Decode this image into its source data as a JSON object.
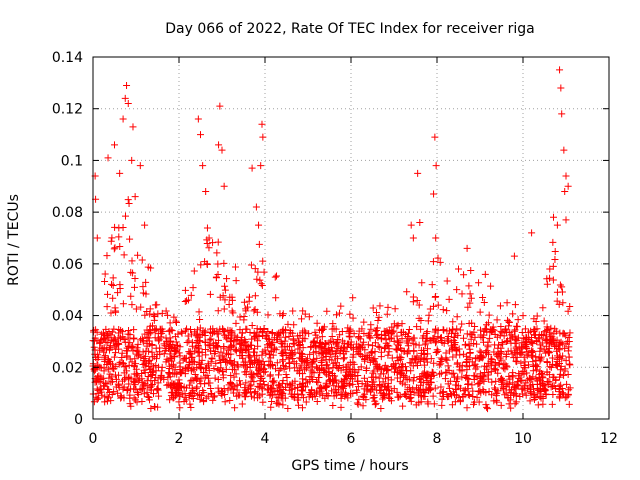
{
  "chart_data": {
    "type": "scatter",
    "title": "Day 066 of 2022, Rate Of TEC Index for receiver riga",
    "xlabel": "GPS time / hours",
    "ylabel": "ROTI / TECUs",
    "xlim": [
      0,
      12
    ],
    "ylim": [
      0,
      0.14
    ],
    "x_ticks": [
      0,
      2,
      4,
      6,
      8,
      10,
      12
    ],
    "y_ticks": [
      0,
      0.02,
      0.04,
      0.06,
      0.08,
      0.1,
      0.12,
      0.14
    ],
    "x_tick_labels": [
      "0",
      "2",
      "4",
      "6",
      "8",
      "10",
      "12"
    ],
    "y_tick_labels": [
      "0",
      "0.02",
      "0.04",
      "0.06",
      "0.08",
      "0.1",
      "0.12",
      "0.14"
    ],
    "grid": true,
    "marker": "+",
    "series": [
      {
        "name": "ROTI",
        "color": "#ff0000",
        "x_range": [
          0,
          11.1
        ],
        "baseline_band": [
          0.008,
          0.035
        ],
        "peaks": [
          {
            "x": 0.05,
            "y": 0.094
          },
          {
            "x": 0.06,
            "y": 0.085
          },
          {
            "x": 0.1,
            "y": 0.07
          },
          {
            "x": 0.35,
            "y": 0.101
          },
          {
            "x": 0.5,
            "y": 0.106
          },
          {
            "x": 0.62,
            "y": 0.095
          },
          {
            "x": 0.7,
            "y": 0.116
          },
          {
            "x": 0.75,
            "y": 0.124
          },
          {
            "x": 0.78,
            "y": 0.129
          },
          {
            "x": 0.82,
            "y": 0.122
          },
          {
            "x": 0.9,
            "y": 0.1
          },
          {
            "x": 0.93,
            "y": 0.113
          },
          {
            "x": 0.98,
            "y": 0.086
          },
          {
            "x": 1.1,
            "y": 0.098
          },
          {
            "x": 1.2,
            "y": 0.075
          },
          {
            "x": 2.45,
            "y": 0.116
          },
          {
            "x": 2.5,
            "y": 0.11
          },
          {
            "x": 2.55,
            "y": 0.098
          },
          {
            "x": 2.62,
            "y": 0.088
          },
          {
            "x": 2.92,
            "y": 0.106
          },
          {
            "x": 2.95,
            "y": 0.121
          },
          {
            "x": 3.0,
            "y": 0.104
          },
          {
            "x": 2.7,
            "y": 0.07
          },
          {
            "x": 3.05,
            "y": 0.09
          },
          {
            "x": 3.7,
            "y": 0.097
          },
          {
            "x": 3.8,
            "y": 0.082
          },
          {
            "x": 3.9,
            "y": 0.098
          },
          {
            "x": 3.93,
            "y": 0.114
          },
          {
            "x": 3.95,
            "y": 0.109
          },
          {
            "x": 3.85,
            "y": 0.075
          },
          {
            "x": 7.4,
            "y": 0.075
          },
          {
            "x": 7.55,
            "y": 0.095
          },
          {
            "x": 7.6,
            "y": 0.076
          },
          {
            "x": 7.45,
            "y": 0.07
          },
          {
            "x": 7.95,
            "y": 0.109
          },
          {
            "x": 7.98,
            "y": 0.098
          },
          {
            "x": 7.92,
            "y": 0.087
          },
          {
            "x": 7.97,
            "y": 0.07
          },
          {
            "x": 8.5,
            "y": 0.058
          },
          {
            "x": 8.7,
            "y": 0.066
          },
          {
            "x": 9.8,
            "y": 0.063
          },
          {
            "x": 10.2,
            "y": 0.072
          },
          {
            "x": 10.85,
            "y": 0.135
          },
          {
            "x": 10.88,
            "y": 0.128
          },
          {
            "x": 10.9,
            "y": 0.118
          },
          {
            "x": 10.95,
            "y": 0.104
          },
          {
            "x": 11.0,
            "y": 0.094
          },
          {
            "x": 10.97,
            "y": 0.088
          },
          {
            "x": 10.8,
            "y": 0.075
          },
          {
            "x": 11.05,
            "y": 0.09
          },
          {
            "x": 11.0,
            "y": 0.077
          }
        ]
      }
    ]
  }
}
